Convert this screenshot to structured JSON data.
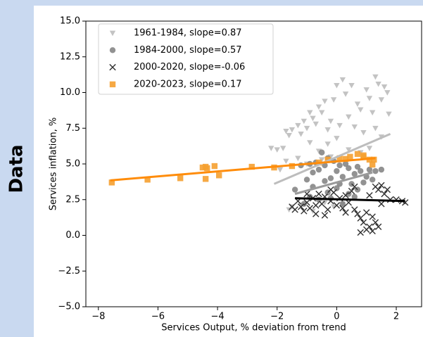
{
  "side_label": "Data",
  "chart_data": {
    "type": "scatter",
    "xlabel": "Services Output, % deviation from trend",
    "ylabel": "Services inflation, %",
    "xlim": [
      -8.42,
      2.85
    ],
    "ylim": [
      -5,
      15
    ],
    "xticks": [
      {
        "value": -8,
        "label": "−8"
      },
      {
        "value": -6,
        "label": "−6"
      },
      {
        "value": -4,
        "label": "−4"
      },
      {
        "value": -2,
        "label": "−2"
      },
      0,
      2
    ],
    "yticks": [
      {
        "value": -5,
        "label": "−5.0"
      },
      {
        "value": -2.5,
        "label": "−2.5"
      },
      {
        "value": 0,
        "label": "0.0"
      },
      {
        "value": 2.5,
        "label": "2.5"
      },
      {
        "value": 5,
        "label": "5.0"
      },
      {
        "value": 7.5,
        "label": "7.5"
      },
      {
        "value": 10,
        "label": "10.0"
      },
      {
        "value": 12.5,
        "label": "12.5"
      },
      {
        "value": 15,
        "label": "15.0"
      }
    ],
    "legend": "upper left",
    "series": [
      {
        "name": "1961-1984, slope=0.87",
        "color": "#bdbdbd",
        "marker": "triangle-down",
        "fit_color": "#bdbdbd",
        "x": [
          -2.2,
          -2.0,
          -1.8,
          -1.7,
          -1.6,
          -1.5,
          -1.3,
          -1.2,
          -1.1,
          -1.0,
          -0.9,
          -0.8,
          -0.7,
          -0.6,
          -0.5,
          -0.4,
          -0.3,
          -0.2,
          -0.1,
          0,
          0.1,
          0.2,
          0.3,
          0.4,
          0.5,
          0.6,
          0.7,
          0.8,
          0.9,
          1.0,
          1.1,
          1.2,
          1.3,
          1.4,
          1.5,
          1.6,
          1.7,
          1.75,
          1.5,
          1.3,
          -0.6,
          -0.5,
          -0.2,
          -1.3,
          -1.0,
          -1.5,
          -1.6,
          -1.2,
          -0.8,
          -0.4,
          -0.1,
          0.2,
          -1.9,
          -1.7,
          -0.9,
          0.0,
          0.4,
          0.8,
          -0.3,
          1.1
        ],
        "values": [
          6.1,
          6.0,
          6.1,
          7.3,
          7.0,
          7.4,
          7.7,
          7.1,
          8.0,
          7.5,
          8.6,
          8.2,
          7.8,
          9.0,
          8.6,
          9.4,
          7.4,
          8.0,
          9.5,
          10.5,
          7.7,
          10.9,
          9.9,
          8.3,
          10.5,
          7.6,
          9.2,
          8.8,
          7.2,
          10.2,
          9.6,
          8.6,
          11.1,
          10.6,
          9.5,
          10.4,
          10.0,
          8.5,
          6.9,
          7.5,
          5.9,
          5.3,
          5.5,
          5.4,
          5.0,
          2.0,
          1.8,
          2.1,
          1.7,
          2.3,
          2.0,
          2.2,
          4.6,
          5.2,
          6.5,
          6.8,
          6.0,
          5.8,
          6.4,
          6.1
        ],
        "fit": {
          "x": [
            -2.1,
            1.8
          ],
          "y": [
            3.6,
            7.1
          ]
        }
      },
      {
        "name": "1984-2000, slope=0.57",
        "color": "#7f7f7f",
        "marker": "circle",
        "fit_color": "#9a9a9a",
        "x": [
          -1.4,
          -1.2,
          -1.0,
          -0.9,
          -0.8,
          -0.7,
          -0.6,
          -0.5,
          -0.4,
          -0.3,
          -0.2,
          -0.1,
          0,
          0.1,
          0.2,
          0.3,
          0.4,
          0.5,
          0.6,
          0.7,
          0.8,
          0.9,
          1.0,
          1.1,
          1.3,
          1.5,
          -0.6,
          -0.3,
          0,
          0.2,
          -0.9,
          -1.1,
          0.4,
          0.7,
          -0.4,
          0.1,
          -0.8,
          1.2,
          -0.2,
          0.6
        ],
        "values": [
          3.2,
          4.9,
          3.9,
          5.0,
          4.4,
          5.1,
          4.6,
          5.8,
          4.9,
          5.4,
          4.0,
          5.2,
          4.5,
          4.9,
          4.1,
          5.0,
          4.7,
          3.6,
          4.3,
          4.8,
          4.5,
          3.7,
          4.1,
          4.6,
          4.5,
          4.6,
          2.5,
          3.0,
          3.3,
          2.2,
          2.7,
          2.2,
          2.9,
          3.2,
          3.8,
          3.6,
          3.4,
          3.9,
          2.6,
          2.7
        ],
        "fit": {
          "x": [
            -1.4,
            1.2
          ],
          "y": [
            2.9,
            4.4
          ]
        }
      },
      {
        "name": "2000-2020, slope=-0.06",
        "color": "#303030",
        "marker": "x",
        "fit_color": "#000000",
        "x": [
          -1.5,
          -1.4,
          -1.3,
          -1.2,
          -1.1,
          -1.0,
          -0.9,
          -0.8,
          -0.7,
          -0.6,
          -0.5,
          -0.4,
          -0.3,
          -0.2,
          -0.1,
          0,
          0.1,
          0.2,
          0.3,
          0.4,
          0.5,
          0.6,
          0.7,
          0.8,
          0.9,
          1.0,
          1.1,
          1.2,
          1.3,
          1.4,
          0.8,
          1.0,
          1.2,
          1.3,
          1.4,
          1.5,
          1.6,
          1.7,
          1.8,
          2.0,
          2.2,
          2.3,
          1.5,
          1.1,
          0.6,
          -0.2,
          -1.0,
          -0.7,
          0.3,
          -0.4
        ],
        "values": [
          2.0,
          1.8,
          2.4,
          2.0,
          1.7,
          2.3,
          1.9,
          2.6,
          2.1,
          2.9,
          2.2,
          2.7,
          1.8,
          2.4,
          3.0,
          2.1,
          2.6,
          1.9,
          2.8,
          2.3,
          3.1,
          1.8,
          1.5,
          1.2,
          0.9,
          1.6,
          0.6,
          0.3,
          0.9,
          0.6,
          0.2,
          0.4,
          1.3,
          3.4,
          3.2,
          3.5,
          2.9,
          3.2,
          2.5,
          2.5,
          2.4,
          2.3,
          2.2,
          2.8,
          3.4,
          3.2,
          2.9,
          1.5,
          1.6,
          1.4
        ],
        "fit": {
          "x": [
            -1.4,
            2.3
          ],
          "y": [
            2.6,
            2.4
          ]
        }
      },
      {
        "name": "2020-2023, slope=0.17",
        "color": "#f5a030",
        "marker": "square",
        "fit_color": "#ff8c0a",
        "x": [
          -7.55,
          -6.35,
          -5.25,
          -4.5,
          -4.4,
          -4.4,
          -4.35,
          -4.1,
          -3.95,
          -2.85,
          -2.1,
          -1.5,
          -0.6,
          -0.3,
          0.1,
          0.3,
          0.45,
          0.7,
          0.9,
          1.1,
          1.2,
          1.25,
          0.9
        ],
        "values": [
          3.7,
          3.9,
          4.0,
          4.75,
          4.8,
          3.95,
          4.7,
          4.85,
          4.2,
          4.8,
          4.75,
          4.85,
          5.1,
          5.3,
          5.4,
          5.35,
          5.5,
          5.7,
          5.5,
          5.3,
          4.95,
          5.3,
          5.6
        ],
        "fit": {
          "x": [
            -7.6,
            1.3
          ],
          "y": [
            3.85,
            5.4
          ]
        }
      }
    ]
  }
}
